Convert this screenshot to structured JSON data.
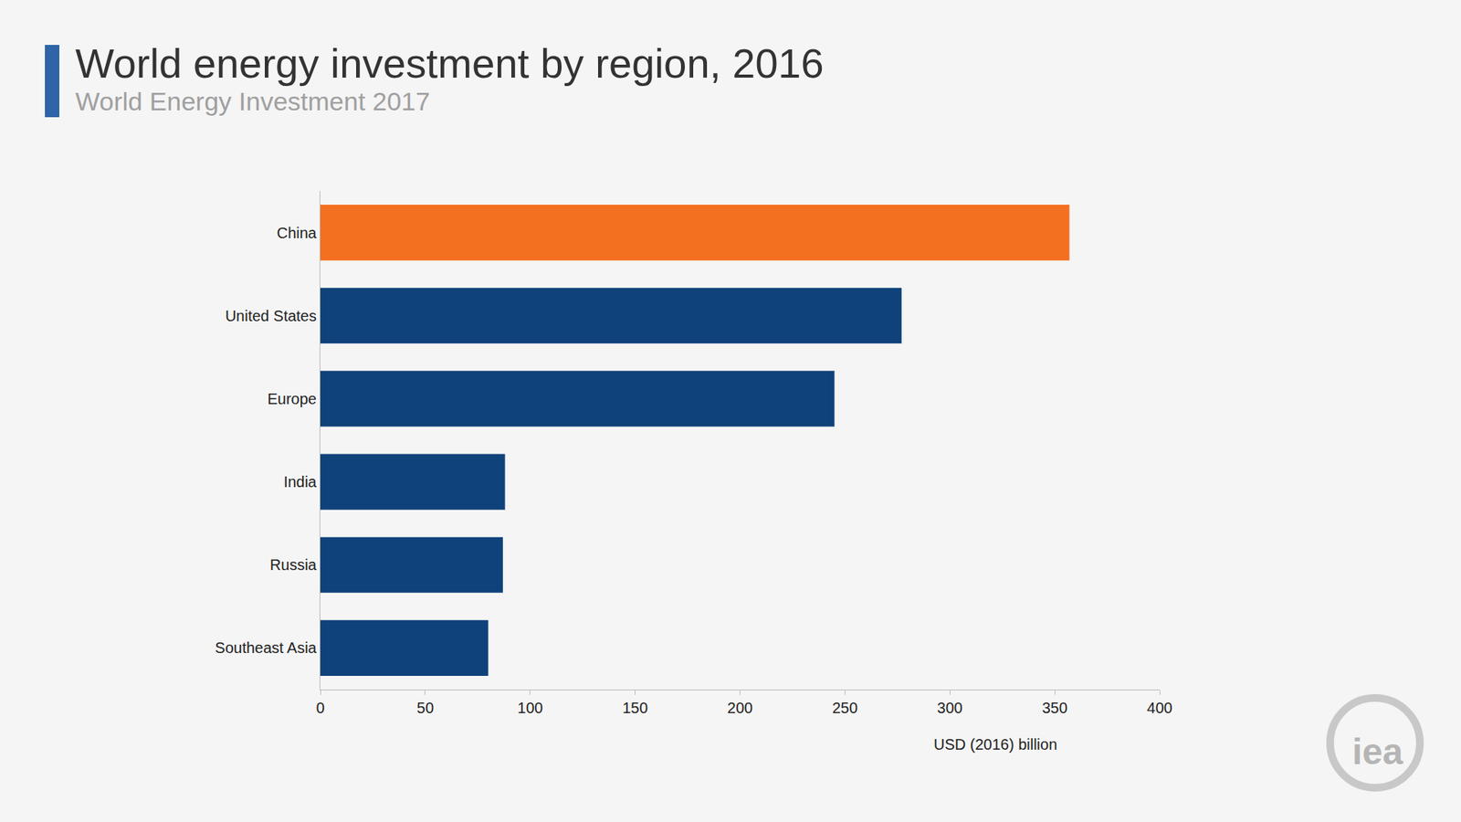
{
  "chart_data": {
    "type": "bar",
    "orientation": "horizontal",
    "title": "World energy investment by region, 2016",
    "subtitle": "World Energy Investment 2017",
    "x_label": "USD (2016) billion",
    "categories": [
      "China",
      "United States",
      "Europe",
      "India",
      "Russia",
      "Southeast Asia"
    ],
    "values": [
      357,
      277,
      245,
      88,
      87,
      80
    ],
    "colors": [
      "#f47021",
      "#0f427a",
      "#0f427a",
      "#0f427a",
      "#0f427a",
      "#0f427a"
    ],
    "xlim": [
      0,
      400
    ],
    "xticks": [
      0,
      50,
      100,
      150,
      200,
      250,
      300,
      350,
      400
    ],
    "grid": false,
    "annotations": [
      "iea"
    ]
  }
}
